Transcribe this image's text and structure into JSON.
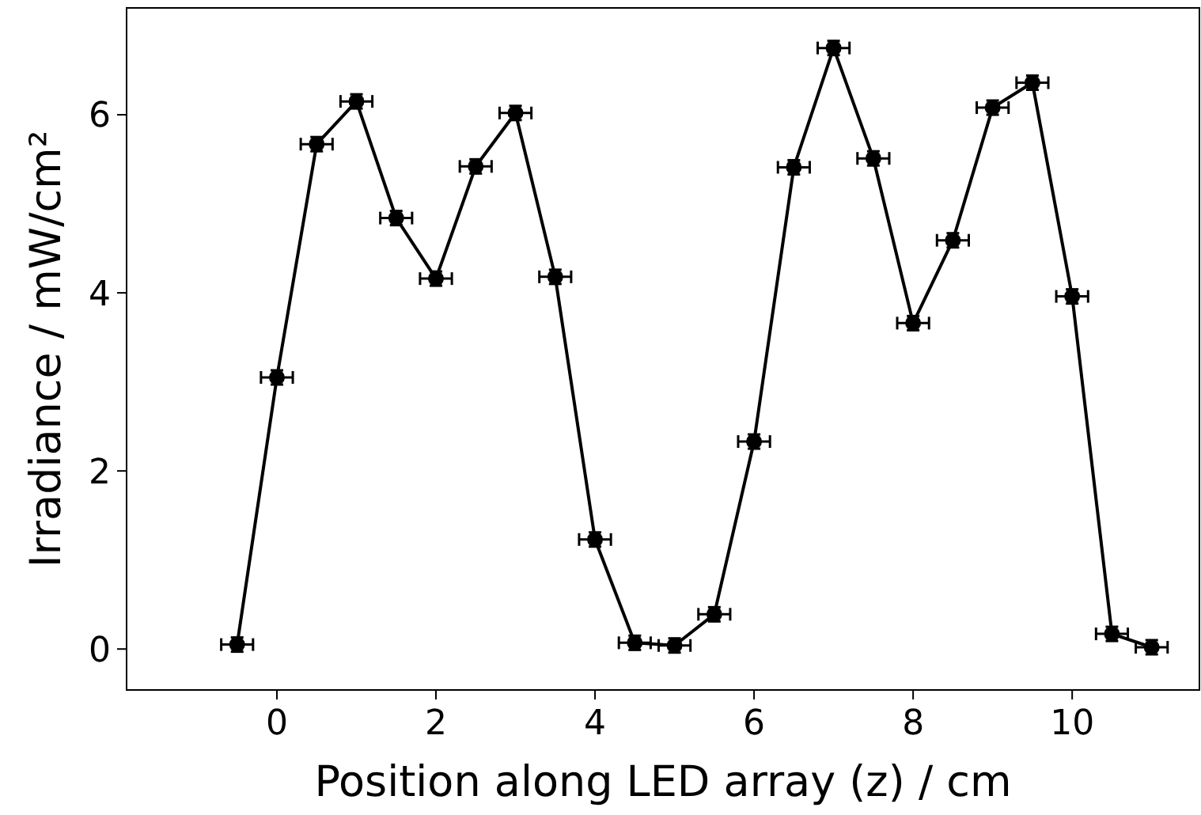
{
  "chart_data": {
    "type": "line",
    "xlabel": "Position along LED array (z) / cm",
    "ylabel": "Irradiance / mW/cm²",
    "x": [
      -0.5,
      0,
      0.5,
      1,
      1.5,
      2,
      2.5,
      3,
      3.5,
      4,
      4.5,
      5,
      5.5,
      6,
      6.5,
      7,
      7.5,
      8,
      8.5,
      9,
      9.5,
      10,
      10.5,
      11
    ],
    "series": [
      {
        "color": "#000000",
        "values": [
          0.05,
          3.05,
          5.67,
          6.15,
          4.84,
          4.16,
          5.42,
          6.02,
          4.18,
          1.23,
          0.07,
          0.04,
          0.39,
          2.33,
          5.41,
          6.75,
          5.51,
          3.66,
          4.59,
          6.08,
          6.36,
          3.96,
          0.17,
          0.02
        ],
        "errors": [
          0.08,
          0.08,
          0.08,
          0.08,
          0.08,
          0.08,
          0.08,
          0.08,
          0.08,
          0.08,
          0.08,
          0.08,
          0.08,
          0.08,
          0.08,
          0.08,
          0.08,
          0.08,
          0.08,
          0.08,
          0.08,
          0.08,
          0.08,
          0.08
        ],
        "xerrors": [
          0.2,
          0.2,
          0.2,
          0.2,
          0.2,
          0.2,
          0.2,
          0.2,
          0.2,
          0.2,
          0.2,
          0.2,
          0.2,
          0.2,
          0.2,
          0.2,
          0.2,
          0.2,
          0.2,
          0.2,
          0.2,
          0.2,
          0.2,
          0.2
        ]
      }
    ],
    "xlim": [
      -1.89,
      11.6
    ],
    "ylim": [
      -0.46,
      7.2
    ],
    "xticks": [
      0,
      2,
      4,
      6,
      8,
      10
    ],
    "yticks": [
      0,
      2,
      4,
      6
    ],
    "marker": "circle",
    "line_style": "solid",
    "grid": false
  }
}
